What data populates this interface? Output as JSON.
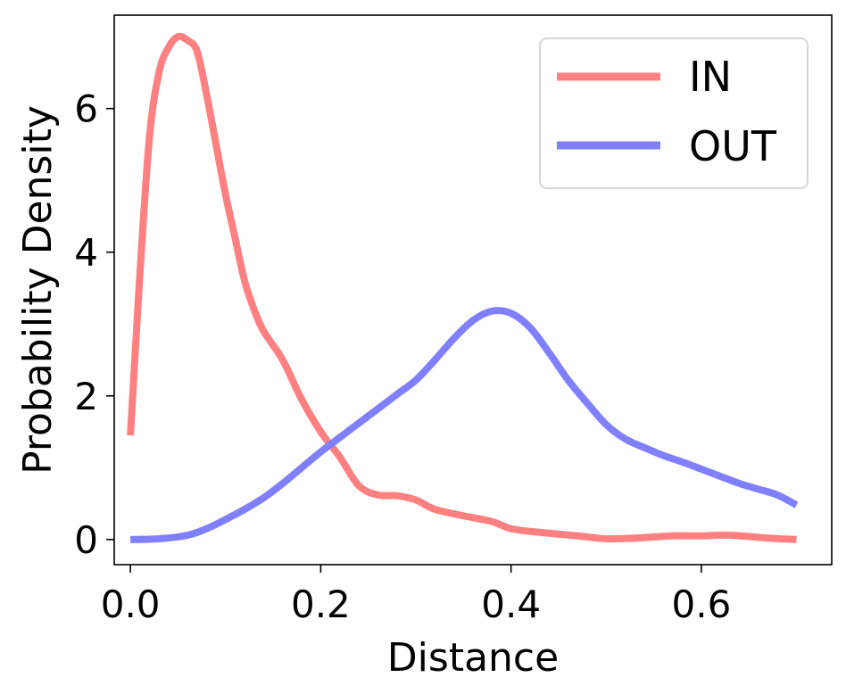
{
  "chart_data": {
    "type": "line",
    "xlabel": "Distance",
    "ylabel": "Probability Density",
    "xlim": [
      -0.017,
      0.737
    ],
    "ylim": [
      -0.35,
      7.3
    ],
    "xticks": [
      0.0,
      0.2,
      0.4,
      0.6
    ],
    "xtick_labels": [
      "0.0",
      "0.2",
      "0.4",
      "0.6"
    ],
    "yticks": [
      0,
      2,
      4,
      6
    ],
    "ytick_labels": [
      "0",
      "2",
      "4",
      "6"
    ],
    "grid": false,
    "legend_position": "top-right",
    "series": [
      {
        "name": "IN",
        "color": "#ff8080",
        "x": [
          0.0,
          0.01,
          0.02,
          0.03,
          0.04,
          0.05,
          0.06,
          0.07,
          0.08,
          0.09,
          0.1,
          0.11,
          0.12,
          0.13,
          0.14,
          0.16,
          0.18,
          0.2,
          0.22,
          0.24,
          0.26,
          0.28,
          0.3,
          0.32,
          0.35,
          0.38,
          0.4,
          0.43,
          0.47,
          0.5,
          0.53,
          0.57,
          0.6,
          0.63,
          0.67,
          0.7
        ],
        "y": [
          1.45,
          3.7,
          5.6,
          6.5,
          6.85,
          7.0,
          6.95,
          6.8,
          6.2,
          5.5,
          4.8,
          4.2,
          3.6,
          3.2,
          2.9,
          2.5,
          1.95,
          1.5,
          1.15,
          0.75,
          0.62,
          0.61,
          0.55,
          0.42,
          0.33,
          0.25,
          0.15,
          0.1,
          0.05,
          0.01,
          0.02,
          0.05,
          0.05,
          0.06,
          0.02,
          0.0
        ]
      },
      {
        "name": "OUT",
        "color": "#8080ff",
        "x": [
          0.0,
          0.03,
          0.06,
          0.08,
          0.1,
          0.12,
          0.14,
          0.16,
          0.18,
          0.2,
          0.22,
          0.24,
          0.26,
          0.28,
          0.3,
          0.32,
          0.34,
          0.36,
          0.38,
          0.4,
          0.42,
          0.44,
          0.46,
          0.48,
          0.5,
          0.52,
          0.54,
          0.56,
          0.58,
          0.6,
          0.62,
          0.64,
          0.66,
          0.68,
          0.7
        ],
        "y": [
          0.0,
          0.01,
          0.06,
          0.15,
          0.28,
          0.42,
          0.58,
          0.78,
          1.0,
          1.22,
          1.42,
          1.62,
          1.82,
          2.02,
          2.22,
          2.5,
          2.8,
          3.05,
          3.18,
          3.15,
          2.95,
          2.6,
          2.22,
          1.9,
          1.6,
          1.4,
          1.28,
          1.17,
          1.08,
          0.98,
          0.88,
          0.78,
          0.7,
          0.62,
          0.48
        ]
      }
    ]
  }
}
